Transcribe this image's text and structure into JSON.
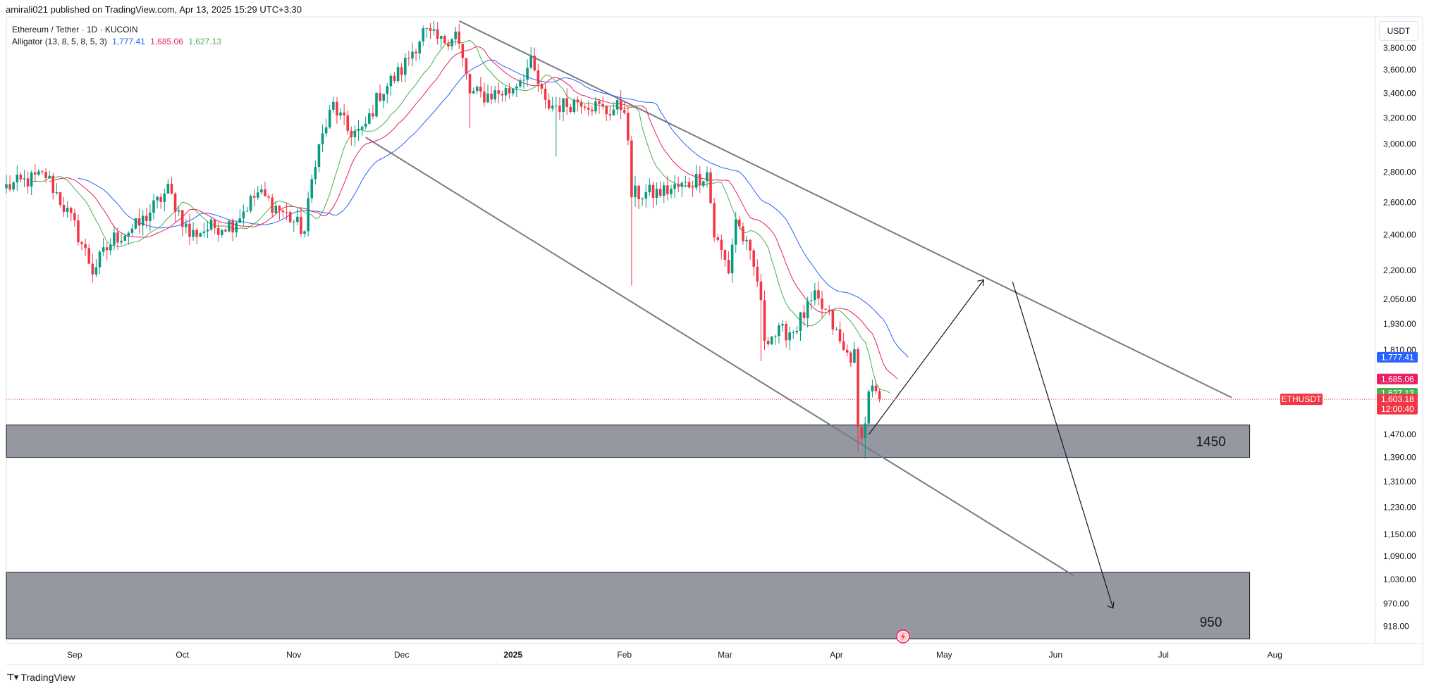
{
  "header": {
    "published_by": "amirali021 published on TradingView.com, Apr 13, 2025 15:29 UTC+3:30"
  },
  "legend": {
    "symbol": "Ethereum / Tether · 1D · KUCOIN",
    "indicator": "Alligator (13, 8, 5, 8, 5, 3)",
    "jaw": "1,777.41",
    "teeth": "1,685.06",
    "lips": "1,627.13"
  },
  "currency_label": "USDT",
  "footer": {
    "logo_text": "TradingView"
  },
  "colors": {
    "up": "#089981",
    "down": "#f23645",
    "jaw": "#2962ff",
    "teeth": "#e91e63",
    "lips": "#4caf50",
    "zone": "#9598a1",
    "channel": "#787b86",
    "last_price": "#f23645"
  },
  "chart_data": {
    "type": "candlestick",
    "symbol": "ETHUSDT",
    "price_scale": "log",
    "ylim": [
      880,
      4100
    ],
    "y_ticks": [
      "3,800.00",
      "3,600.00",
      "3,400.00",
      "3,200.00",
      "3,000.00",
      "2,800.00",
      "2,600.00",
      "2,400.00",
      "2,200.00",
      "2,050.00",
      "1,930.00",
      "1,810.00",
      "1,470.00",
      "1,390.00",
      "1,310.00",
      "1,230.00",
      "1,150.00",
      "1,090.00",
      "1,030.00",
      "970.00",
      "918.00"
    ],
    "y_tick_values": [
      3800,
      3600,
      3400,
      3200,
      3000,
      2800,
      2600,
      2400,
      2200,
      2050,
      1930,
      1810,
      1470,
      1390,
      1310,
      1230,
      1150,
      1090,
      1030,
      970,
      918
    ],
    "x_ticks": [
      {
        "label": "Sep",
        "date": "2024-09-01"
      },
      {
        "label": "Oct",
        "date": "2024-10-01"
      },
      {
        "label": "Nov",
        "date": "2024-11-01"
      },
      {
        "label": "Dec",
        "date": "2024-12-01"
      },
      {
        "label": "2025",
        "date": "2025-01-01"
      },
      {
        "label": "Feb",
        "date": "2025-02-01"
      },
      {
        "label": "Mar",
        "date": "2025-03-01"
      },
      {
        "label": "Apr",
        "date": "2025-04-01"
      },
      {
        "label": "May",
        "date": "2025-05-01"
      },
      {
        "label": "Jun",
        "date": "2025-06-01"
      },
      {
        "label": "Jul",
        "date": "2025-07-01"
      },
      {
        "label": "Aug",
        "date": "2025-08-01"
      }
    ],
    "xlim": [
      "2024-08-13",
      "2025-08-29"
    ],
    "path_points": [
      [
        "2024-08-13",
        2700
      ],
      [
        "2024-08-24",
        2780
      ],
      [
        "2024-09-01",
        2450
      ],
      [
        "2024-09-06",
        2200
      ],
      [
        "2024-09-12",
        2380
      ],
      [
        "2024-09-19",
        2460
      ],
      [
        "2024-09-27",
        2680
      ],
      [
        "2024-10-03",
        2400
      ],
      [
        "2024-10-08",
        2440
      ],
      [
        "2024-10-15",
        2470
      ],
      [
        "2024-10-22",
        2660
      ],
      [
        "2024-10-30",
        2520
      ],
      [
        "2024-11-04",
        2420
      ],
      [
        "2024-11-07",
        2900
      ],
      [
        "2024-11-12",
        3300
      ],
      [
        "2024-11-16",
        3100
      ],
      [
        "2024-11-20",
        3080
      ],
      [
        "2024-11-25",
        3400
      ],
      [
        "2024-12-01",
        3600
      ],
      [
        "2024-12-07",
        3950
      ],
      [
        "2024-12-12",
        3850
      ],
      [
        "2024-12-16",
        3950
      ],
      [
        "2024-12-20",
        3400
      ],
      [
        "2024-12-24",
        3380
      ],
      [
        "2024-12-31",
        3420
      ],
      [
        "2025-01-06",
        3650
      ],
      [
        "2025-01-10",
        3300
      ],
      [
        "2025-01-15",
        3300
      ],
      [
        "2025-01-20",
        3350
      ],
      [
        "2025-01-27",
        3250
      ],
      [
        "2025-02-01",
        3300
      ],
      [
        "2025-02-03",
        2650
      ],
      [
        "2025-02-10",
        2660
      ],
      [
        "2025-02-18",
        2710
      ],
      [
        "2025-02-24",
        2800
      ],
      [
        "2025-02-26",
        2400
      ],
      [
        "2025-03-02",
        2200
      ],
      [
        "2025-03-04",
        2500
      ],
      [
        "2025-03-10",
        2150
      ],
      [
        "2025-03-12",
        1870
      ],
      [
        "2025-03-20",
        1900
      ],
      [
        "2025-03-26",
        2050
      ],
      [
        "2025-03-30",
        1960
      ],
      [
        "2025-04-03",
        1800
      ],
      [
        "2025-04-06",
        1780
      ],
      [
        "2025-04-07",
        1480
      ],
      [
        "2025-04-09",
        1500
      ],
      [
        "2025-04-10",
        1650
      ],
      [
        "2025-04-13",
        1603.18
      ]
    ],
    "alligator": {
      "jaw": {
        "period": 13,
        "shift": 8,
        "last": 1777.41
      },
      "teeth": {
        "period": 8,
        "shift": 5,
        "last": 1685.06
      },
      "lips": {
        "period": 5,
        "shift": 3,
        "last": 1627.13
      }
    },
    "price_tags": [
      {
        "label": "1,777.41",
        "price": 1777.41,
        "color": "#2962ff"
      },
      {
        "label": "1,685.06",
        "price": 1685.06,
        "color": "#e91e63"
      },
      {
        "label": "1,627.13",
        "price": 1627.13,
        "color": "#4caf50"
      },
      {
        "label": "1,603.18",
        "price": 1603.18,
        "color": "#f23645"
      },
      {
        "label": "12:00:40",
        "price": 1575,
        "color": "#f23645"
      }
    ],
    "last_price": {
      "symbol": "ETHUSDT",
      "value": "1,603.18",
      "countdown": "12:00:40",
      "price": 1603.18
    },
    "zones": [
      {
        "label": "1450",
        "top": 1505,
        "bottom": 1390,
        "start": "2024-08-13",
        "end": "2025-07-25"
      },
      {
        "label": "950",
        "top": 1048,
        "bottom": 890,
        "start": "2024-08-13",
        "end": "2025-07-25"
      }
    ],
    "channel_lines": [
      {
        "from": [
          "2024-12-17",
          4060
        ],
        "to": [
          "2025-07-20",
          1610
        ]
      },
      {
        "from": [
          "2024-11-21",
          3050
        ],
        "to": [
          "2025-06-06",
          1040
        ]
      }
    ],
    "projection": [
      [
        "2025-04-10",
        1470
      ],
      [
        "2025-05-12",
        2150
      ],
      [
        "2025-05-20",
        2140
      ],
      [
        "2025-06-17",
        960
      ]
    ]
  }
}
